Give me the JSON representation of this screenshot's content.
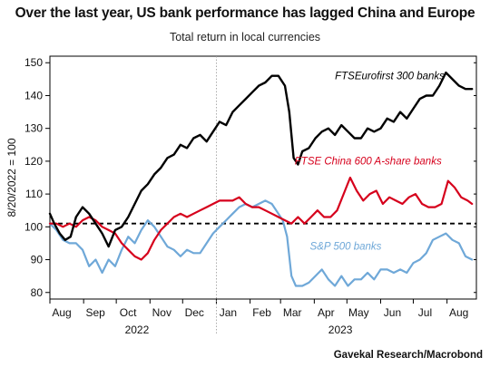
{
  "chart_data": {
    "type": "line",
    "title": "Over the last year, US bank performance has lagged China and Europe",
    "subtitle": "Total return in local currencies",
    "ylabel": "8/20/2022 = 100",
    "xlabel": "",
    "source": "Gavekal Research/Macrobond",
    "ylim": [
      78,
      152
    ],
    "xlim": [
      "2022-08-01",
      "2023-08-28"
    ],
    "yticks": [
      80,
      90,
      100,
      110,
      120,
      130,
      140,
      150
    ],
    "xtick_labels": [
      "Aug",
      "Sep",
      "Oct",
      "Nov",
      "Dec",
      "Jan",
      "Feb",
      "Mar",
      "Apr",
      "May",
      "Jun",
      "Jul",
      "Aug"
    ],
    "year_labels": [
      "2022",
      "2023"
    ],
    "baseline": 101,
    "grid": false,
    "series": [
      {
        "name": "FTSEurofirst 300 banks",
        "color": "#000000",
        "x": [
          "2022-08-01",
          "2022-08-05",
          "2022-08-10",
          "2022-08-15",
          "2022-08-20",
          "2022-08-25",
          "2022-08-31",
          "2022-09-06",
          "2022-09-12",
          "2022-09-18",
          "2022-09-24",
          "2022-09-30",
          "2022-10-06",
          "2022-10-12",
          "2022-10-18",
          "2022-10-24",
          "2022-10-30",
          "2022-11-05",
          "2022-11-11",
          "2022-11-17",
          "2022-11-23",
          "2022-11-29",
          "2022-12-05",
          "2022-12-11",
          "2022-12-17",
          "2022-12-23",
          "2022-12-29",
          "2023-01-04",
          "2023-01-10",
          "2023-01-16",
          "2023-01-22",
          "2023-01-28",
          "2023-02-03",
          "2023-02-09",
          "2023-02-15",
          "2023-02-21",
          "2023-02-27",
          "2023-03-05",
          "2023-03-09",
          "2023-03-13",
          "2023-03-17",
          "2023-03-21",
          "2023-03-27",
          "2023-04-02",
          "2023-04-08",
          "2023-04-14",
          "2023-04-20",
          "2023-04-26",
          "2023-05-02",
          "2023-05-08",
          "2023-05-14",
          "2023-05-20",
          "2023-05-26",
          "2023-06-01",
          "2023-06-07",
          "2023-06-13",
          "2023-06-19",
          "2023-06-25",
          "2023-07-01",
          "2023-07-07",
          "2023-07-13",
          "2023-07-19",
          "2023-07-25",
          "2023-07-31",
          "2023-08-06",
          "2023-08-12",
          "2023-08-18",
          "2023-08-24"
        ],
        "values": [
          104,
          101,
          98,
          96,
          97,
          103,
          106,
          104,
          101,
          98,
          94,
          99,
          100,
          103,
          107,
          111,
          113,
          116,
          118,
          121,
          122,
          125,
          124,
          127,
          128,
          126,
          129,
          132,
          131,
          135,
          137,
          139,
          141,
          143,
          144,
          146,
          146,
          143,
          135,
          121,
          119,
          123,
          124,
          127,
          129,
          130,
          128,
          131,
          129,
          127,
          127,
          130,
          129,
          130,
          133,
          132,
          135,
          133,
          136,
          139,
          140,
          140,
          143,
          147,
          145,
          143,
          142,
          142
        ]
      },
      {
        "name": "FTSE China 600 A-share banks",
        "color": "#d6001c",
        "x": [
          "2022-08-01",
          "2022-08-07",
          "2022-08-13",
          "2022-08-19",
          "2022-08-25",
          "2022-08-31",
          "2022-09-06",
          "2022-09-12",
          "2022-09-18",
          "2022-09-24",
          "2022-09-30",
          "2022-10-06",
          "2022-10-12",
          "2022-10-18",
          "2022-10-24",
          "2022-10-30",
          "2022-11-05",
          "2022-11-11",
          "2022-11-17",
          "2022-11-23",
          "2022-11-29",
          "2022-12-05",
          "2022-12-11",
          "2022-12-17",
          "2022-12-23",
          "2022-12-29",
          "2023-01-04",
          "2023-01-10",
          "2023-01-16",
          "2023-01-22",
          "2023-01-28",
          "2023-02-03",
          "2023-02-09",
          "2023-02-15",
          "2023-02-21",
          "2023-02-27",
          "2023-03-05",
          "2023-03-11",
          "2023-03-17",
          "2023-03-23",
          "2023-03-29",
          "2023-04-04",
          "2023-04-10",
          "2023-04-16",
          "2023-04-22",
          "2023-04-28",
          "2023-05-04",
          "2023-05-10",
          "2023-05-16",
          "2023-05-22",
          "2023-05-28",
          "2023-06-03",
          "2023-06-09",
          "2023-06-15",
          "2023-06-21",
          "2023-06-27",
          "2023-07-03",
          "2023-07-09",
          "2023-07-15",
          "2023-07-21",
          "2023-07-27",
          "2023-08-02",
          "2023-08-08",
          "2023-08-14",
          "2023-08-20",
          "2023-08-24"
        ],
        "values": [
          101,
          101,
          100,
          101,
          100,
          102,
          103,
          102,
          100,
          99,
          98,
          95,
          93,
          91,
          90,
          92,
          96,
          99,
          101,
          103,
          104,
          103,
          104,
          105,
          106,
          107,
          108,
          108,
          108,
          109,
          107,
          106,
          106,
          105,
          104,
          103,
          102,
          101,
          103,
          101,
          103,
          105,
          103,
          103,
          105,
          110,
          115,
          111,
          108,
          110,
          111,
          107,
          109,
          108,
          107,
          109,
          110,
          107,
          106,
          106,
          107,
          114,
          112,
          109,
          108,
          107
        ]
      },
      {
        "name": "S&P 500 banks",
        "color": "#6fa8d8",
        "x": [
          "2022-08-01",
          "2022-08-07",
          "2022-08-13",
          "2022-08-19",
          "2022-08-25",
          "2022-08-31",
          "2022-09-06",
          "2022-09-12",
          "2022-09-18",
          "2022-09-24",
          "2022-09-30",
          "2022-10-06",
          "2022-10-12",
          "2022-10-18",
          "2022-10-24",
          "2022-10-30",
          "2022-11-05",
          "2022-11-11",
          "2022-11-17",
          "2022-11-23",
          "2022-11-29",
          "2022-12-05",
          "2022-12-11",
          "2022-12-17",
          "2022-12-23",
          "2022-12-29",
          "2023-01-04",
          "2023-01-10",
          "2023-01-16",
          "2023-01-22",
          "2023-01-28",
          "2023-02-03",
          "2023-02-09",
          "2023-02-15",
          "2023-02-21",
          "2023-02-27",
          "2023-03-03",
          "2023-03-07",
          "2023-03-11",
          "2023-03-15",
          "2023-03-21",
          "2023-03-27",
          "2023-04-02",
          "2023-04-08",
          "2023-04-14",
          "2023-04-20",
          "2023-04-26",
          "2023-05-02",
          "2023-05-08",
          "2023-05-14",
          "2023-05-20",
          "2023-05-26",
          "2023-06-01",
          "2023-06-07",
          "2023-06-13",
          "2023-06-19",
          "2023-06-25",
          "2023-07-01",
          "2023-07-07",
          "2023-07-13",
          "2023-07-19",
          "2023-07-25",
          "2023-07-31",
          "2023-08-06",
          "2023-08-12",
          "2023-08-18",
          "2023-08-24"
        ],
        "values": [
          101,
          99,
          96,
          95,
          95,
          93,
          88,
          90,
          86,
          90,
          88,
          93,
          97,
          95,
          99,
          102,
          100,
          97,
          94,
          93,
          91,
          93,
          92,
          92,
          95,
          98,
          100,
          102,
          104,
          106,
          107,
          106,
          107,
          108,
          107,
          104,
          102,
          97,
          85,
          82,
          82,
          83,
          85,
          87,
          84,
          82,
          85,
          82,
          84,
          84,
          86,
          84,
          87,
          87,
          86,
          87,
          86,
          89,
          90,
          92,
          96,
          97,
          98,
          96,
          95,
          91,
          90
        ]
      }
    ],
    "annotations": [
      {
        "text": "FTSEurofirst 300 banks",
        "series": 0,
        "x": "2023-04-20",
        "y": 145
      },
      {
        "text": "FTSE China 600 A-share banks",
        "series": 1,
        "x": "2023-03-14",
        "y": 119
      },
      {
        "text": "S&P 500 banks",
        "series": 2,
        "x": "2023-03-28",
        "y": 93
      }
    ]
  }
}
